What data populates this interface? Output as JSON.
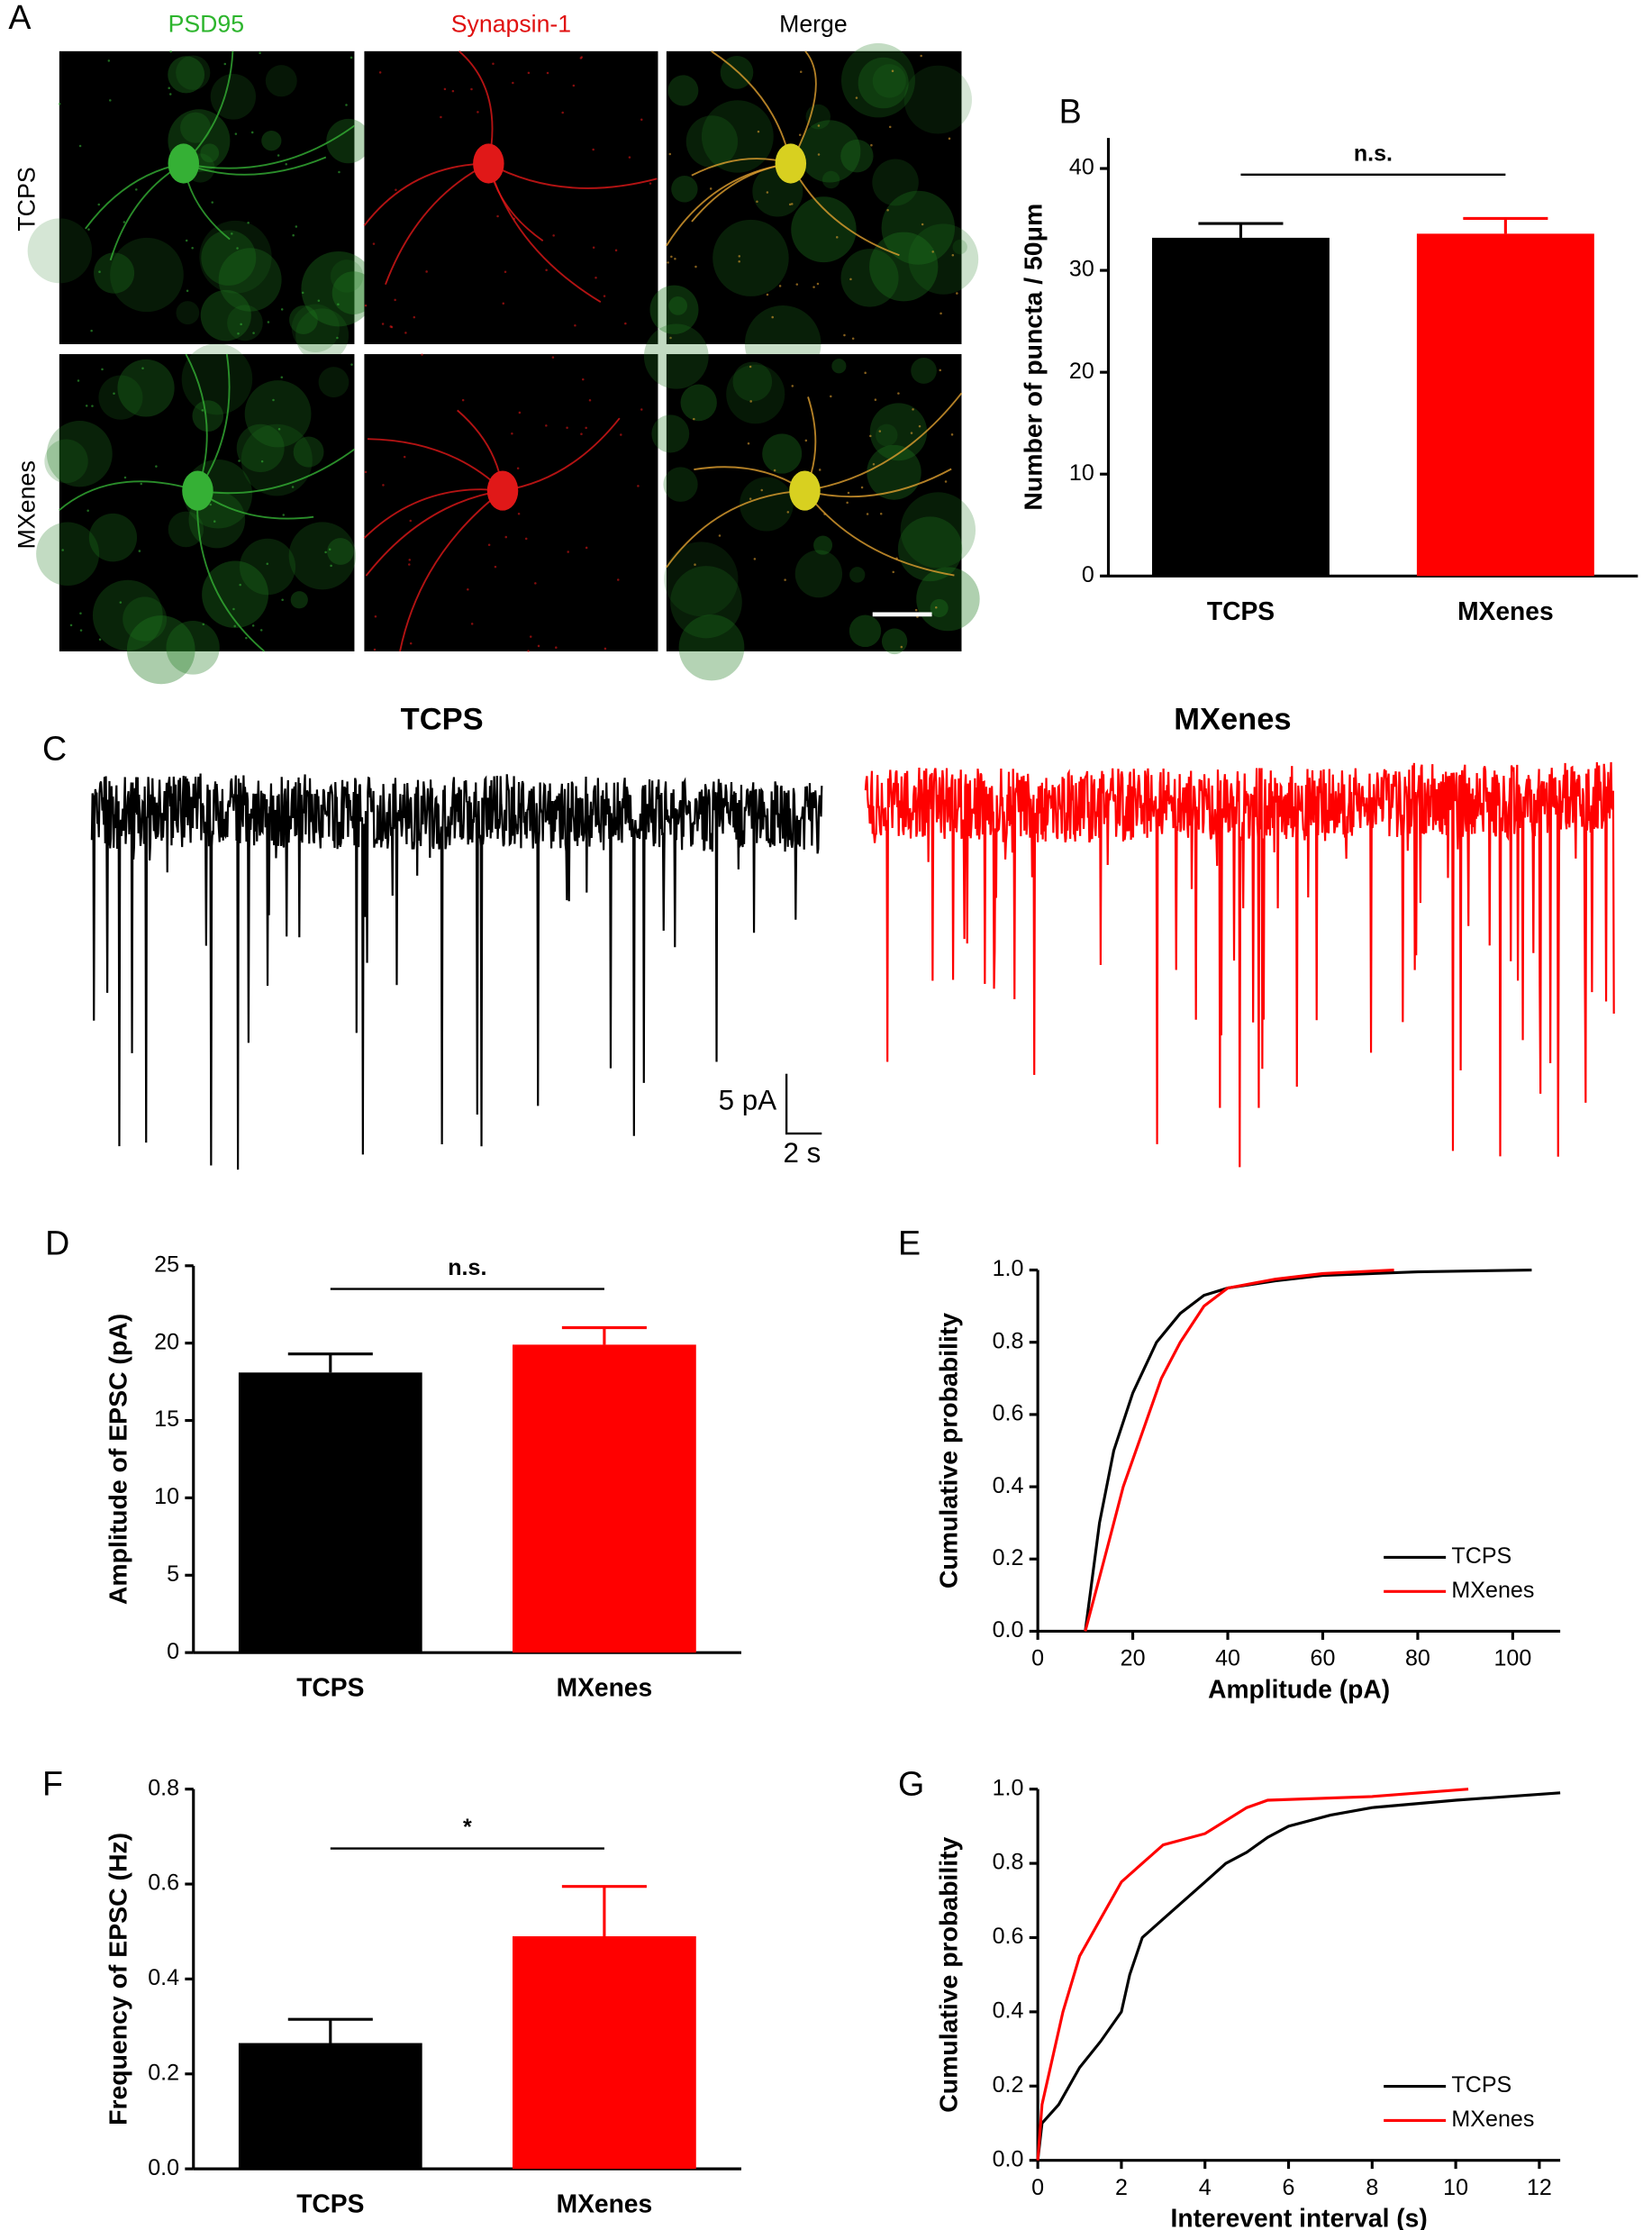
{
  "panel_labels": [
    "A",
    "B",
    "C",
    "D",
    "E",
    "F",
    "G"
  ],
  "images": {
    "columns": [
      "PSD95",
      "Synapsin-1",
      "Merge"
    ],
    "rows": [
      "TCPS",
      "MXenes"
    ]
  },
  "traces": {
    "titles": [
      "TCPS",
      "MXenes"
    ],
    "scale_y": "5 pA",
    "scale_x": "2 s"
  },
  "chart_data": [
    {
      "type": "bar",
      "categories": [
        "TCPS",
        "MXenes"
      ],
      "values": [
        33.2,
        33.6
      ],
      "errors": [
        1.4,
        1.5
      ],
      "colors": [
        "#000000",
        "#ff0000"
      ],
      "ylabel": "Number of puncta / 50μm",
      "ylim": [
        0,
        43
      ],
      "yticks": [
        0,
        10,
        20,
        30,
        40
      ],
      "annotation": "n.s."
    },
    {
      "type": "bar",
      "categories": [
        "TCPS",
        "MXenes"
      ],
      "values": [
        18.1,
        19.9
      ],
      "errors": [
        1.2,
        1.1
      ],
      "colors": [
        "#000000",
        "#ff0000"
      ],
      "ylabel": "Amplitude of EPSC (pA)",
      "ylim": [
        0,
        25
      ],
      "yticks": [
        0,
        5,
        10,
        15,
        20,
        25
      ],
      "annotation": "n.s."
    },
    {
      "type": "line",
      "xlabel": "Amplitude (pA)",
      "ylabel": "Cumulative probability",
      "legend": "lower right",
      "xlim": [
        0,
        110
      ],
      "xticks": [
        0,
        20,
        40,
        60,
        80,
        100
      ],
      "ylim": [
        0,
        1
      ],
      "yticks": [
        {
          "value": 0,
          "label": "0.0"
        },
        0.2,
        0.4,
        0.6,
        0.8,
        {
          "value": 1,
          "label": "1.0"
        }
      ],
      "series": [
        {
          "name": "TCPS",
          "color": "#000000",
          "x": [
            10,
            11,
            13,
            16,
            20,
            25,
            30,
            35,
            40,
            50,
            60,
            80,
            104
          ],
          "values": [
            0,
            0.1,
            0.3,
            0.5,
            0.66,
            0.8,
            0.88,
            0.93,
            0.95,
            0.97,
            0.985,
            0.995,
            1.0
          ]
        },
        {
          "name": "MXenes",
          "color": "#ff0000",
          "x": [
            10,
            12,
            15,
            18,
            22,
            26,
            30,
            35,
            40,
            50,
            60,
            75
          ],
          "values": [
            0,
            0.1,
            0.25,
            0.4,
            0.55,
            0.7,
            0.8,
            0.9,
            0.95,
            0.975,
            0.99,
            1.0
          ]
        }
      ]
    },
    {
      "type": "bar",
      "categories": [
        "TCPS",
        "MXenes"
      ],
      "values": [
        0.265,
        0.49
      ],
      "errors": [
        0.05,
        0.105
      ],
      "colors": [
        "#000000",
        "#ff0000"
      ],
      "ylabel": "Frequency of EPSC (Hz)",
      "ylim": [
        0,
        0.8
      ],
      "yticks": [
        {
          "value": 0,
          "label": "0.0"
        },
        0.2,
        0.4,
        0.6,
        0.8
      ],
      "annotation": "*"
    },
    {
      "type": "line",
      "xlabel": "Interevent interval (s)",
      "ylabel": "Cumulative probability",
      "legend": "lower right",
      "xlim": [
        0,
        12.5
      ],
      "xticks": [
        0,
        2,
        4,
        6,
        8,
        10,
        12
      ],
      "ylim": [
        0,
        1
      ],
      "yticks": [
        {
          "value": 0,
          "label": "0.0"
        },
        0.2,
        0.4,
        0.6,
        0.8,
        {
          "value": 1,
          "label": "1.0"
        }
      ],
      "series": [
        {
          "name": "TCPS",
          "color": "#000000",
          "x": [
            0,
            0.1,
            0.5,
            1,
            1.5,
            2,
            2.2,
            2.5,
            3,
            3.5,
            4,
            4.5,
            5,
            5.5,
            6,
            7,
            8,
            10,
            12.5
          ],
          "values": [
            0,
            0.1,
            0.15,
            0.25,
            0.32,
            0.4,
            0.5,
            0.6,
            0.65,
            0.7,
            0.75,
            0.8,
            0.83,
            0.87,
            0.9,
            0.93,
            0.95,
            0.97,
            0.99
          ]
        },
        {
          "name": "MXenes",
          "color": "#ff0000",
          "x": [
            0,
            0.1,
            0.3,
            0.6,
            1,
            1.5,
            2,
            2.5,
            3,
            4,
            5,
            5.5,
            8,
            10.3
          ],
          "values": [
            0,
            0.15,
            0.25,
            0.4,
            0.55,
            0.65,
            0.75,
            0.8,
            0.85,
            0.88,
            0.95,
            0.97,
            0.98,
            1.0
          ]
        }
      ]
    }
  ]
}
